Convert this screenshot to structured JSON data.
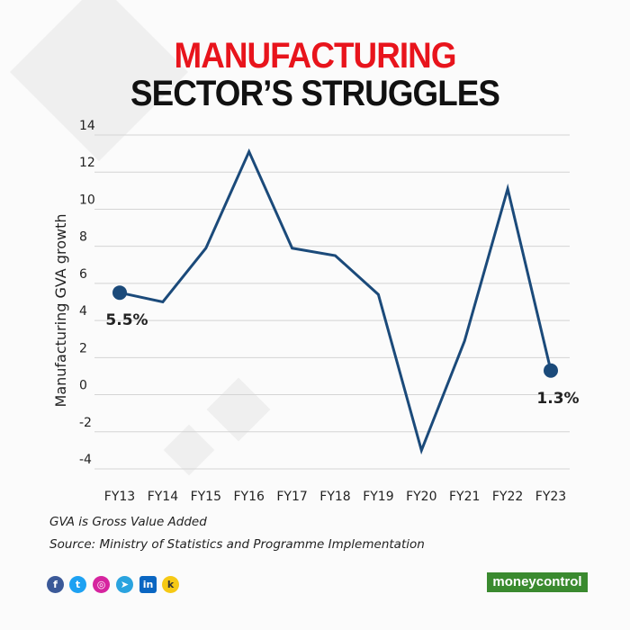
{
  "title_line1": "MANUFACTURING",
  "title_line2": "SECTOR’S STRUGGLES",
  "chart_data": {
    "type": "line",
    "title": "MANUFACTURING SECTOR’S STRUGGLES",
    "xlabel": "",
    "ylabel": "Manufacturing GVA growth",
    "categories": [
      "FY13",
      "FY14",
      "FY15",
      "FY16",
      "FY17",
      "FY18",
      "FY19",
      "FY20",
      "FY21",
      "FY22",
      "FY23"
    ],
    "values": [
      5.5,
      5.0,
      7.9,
      13.1,
      7.9,
      7.5,
      5.4,
      -3.0,
      2.9,
      11.1,
      1.3
    ],
    "ylim": [
      -4,
      14
    ],
    "yticks": [
      "14",
      "12",
      "10",
      "8",
      "6",
      "4",
      "2",
      "0",
      "-2",
      "-4"
    ],
    "annotations": [
      {
        "index": 0,
        "text": "5.5%"
      },
      {
        "index": 10,
        "text": "1.3%"
      }
    ],
    "grid": true,
    "line_color": "#1b4a7a"
  },
  "notes": [
    "GVA is Gross Value Added",
    "Source: Ministry of Statistics and Programme Implementation"
  ],
  "social_icons": [
    "facebook-icon",
    "twitter-icon",
    "instagram-icon",
    "telegram-icon",
    "linkedin-icon",
    "koo-icon"
  ],
  "brand": "moneycontrol"
}
